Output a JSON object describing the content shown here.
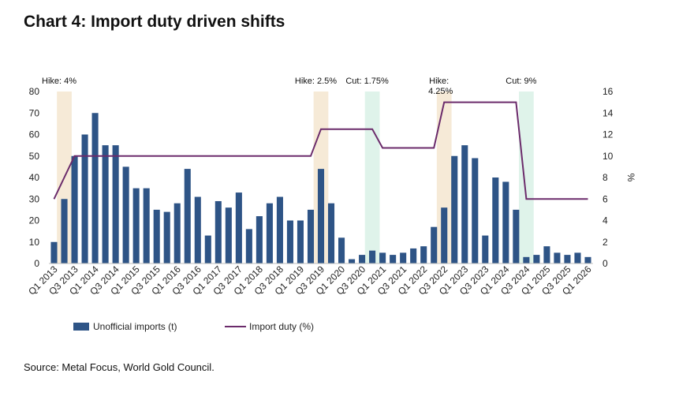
{
  "title": "Chart 4: Import duty driven shifts",
  "source": "Source: Metal Focus, World Gold Council.",
  "chart_data": {
    "type": "bar",
    "title": "Chart 4: Import duty driven shifts",
    "y_left": {
      "ylim": [
        0,
        80
      ],
      "ticks": [
        0,
        10,
        20,
        30,
        40,
        50,
        60,
        70,
        80
      ],
      "label": ""
    },
    "y_right": {
      "ylim": [
        0,
        16
      ],
      "ticks": [
        0,
        2,
        4,
        6,
        8,
        10,
        12,
        14,
        16
      ],
      "label": "%"
    },
    "x_tick_labels": [
      "Q1 2013",
      "Q3 2013",
      "Q1 2014",
      "Q3 2014",
      "Q1 2015",
      "Q3 2015",
      "Q1 2016",
      "Q3 2016",
      "Q1 2017",
      "Q3 2017",
      "Q1 2018",
      "Q3 2018",
      "Q1 2019",
      "Q3 2019",
      "Q1 2020",
      "Q3 2020",
      "Q1 2021",
      "Q3 2021",
      "Q1 2022",
      "Q3 2022",
      "Q1 2023",
      "Q3 2023",
      "Q1 2024",
      "Q3 2024",
      "Q1 2025",
      "Q3 2025",
      "Q1 2026"
    ],
    "categories": [
      "Q1 2013",
      "Q2 2013",
      "Q3 2013",
      "Q4 2013",
      "Q1 2014",
      "Q2 2014",
      "Q3 2014",
      "Q4 2014",
      "Q1 2015",
      "Q2 2015",
      "Q3 2015",
      "Q4 2015",
      "Q1 2016",
      "Q2 2016",
      "Q3 2016",
      "Q4 2016",
      "Q1 2017",
      "Q2 2017",
      "Q3 2017",
      "Q4 2017",
      "Q1 2018",
      "Q2 2018",
      "Q3 2018",
      "Q4 2018",
      "Q1 2019",
      "Q2 2019",
      "Q3 2019",
      "Q4 2019",
      "Q1 2020",
      "Q2 2020",
      "Q3 2020",
      "Q4 2020",
      "Q1 2021",
      "Q2 2021",
      "Q3 2021",
      "Q4 2021",
      "Q1 2022",
      "Q2 2022",
      "Q3 2022",
      "Q4 2022",
      "Q1 2023",
      "Q2 2023",
      "Q3 2023",
      "Q4 2023",
      "Q1 2024",
      "Q2 2024",
      "Q3 2024",
      "Q4 2024",
      "Q1 2025",
      "Q2 2025",
      "Q3 2025",
      "Q4 2025",
      "Q1 2026"
    ],
    "series": [
      {
        "name": "Unofficial imports (t)",
        "kind": "bar",
        "axis": "left",
        "color": "#2e5486",
        "values": [
          10,
          30,
          50,
          60,
          70,
          55,
          55,
          45,
          35,
          35,
          25,
          24,
          28,
          44,
          31,
          13,
          29,
          26,
          33,
          16,
          22,
          28,
          31,
          20,
          20,
          25,
          44,
          28,
          12,
          2,
          4,
          6,
          5,
          4,
          5,
          7,
          8,
          17,
          26,
          50,
          55,
          49,
          13,
          40,
          38,
          25,
          3,
          4,
          8,
          5,
          4,
          5,
          3
        ]
      },
      {
        "name": "Import duty (%)",
        "kind": "line",
        "axis": "right",
        "color": "#6b2b6b",
        "values": [
          6,
          8,
          10,
          10,
          10,
          10,
          10,
          10,
          10,
          10,
          10,
          10,
          10,
          10,
          10,
          10,
          10,
          10,
          10,
          10,
          10,
          10,
          10,
          10,
          10,
          10,
          12.5,
          12.5,
          12.5,
          12.5,
          12.5,
          12.5,
          10.75,
          10.75,
          10.75,
          10.75,
          10.75,
          10.75,
          15,
          15,
          15,
          15,
          15,
          15,
          15,
          15,
          6,
          6,
          6,
          6,
          6,
          6,
          6
        ]
      }
    ],
    "annotations": [
      {
        "text": "Hike: 4%",
        "index": 1,
        "color": "#f6ead7"
      },
      {
        "text": "Hike: 2.5%",
        "index": 26,
        "color": "#f6ead7"
      },
      {
        "text": "Cut: 1.75%",
        "index": 31,
        "color": "#dff3ea"
      },
      {
        "text": "Hike:",
        "text2": "4.25%",
        "index": 38,
        "color": "#f6ead7"
      },
      {
        "text": "Cut: 9%",
        "index": 46,
        "color": "#dff3ea"
      }
    ],
    "legend_position": "bottom-left",
    "grid": false
  }
}
